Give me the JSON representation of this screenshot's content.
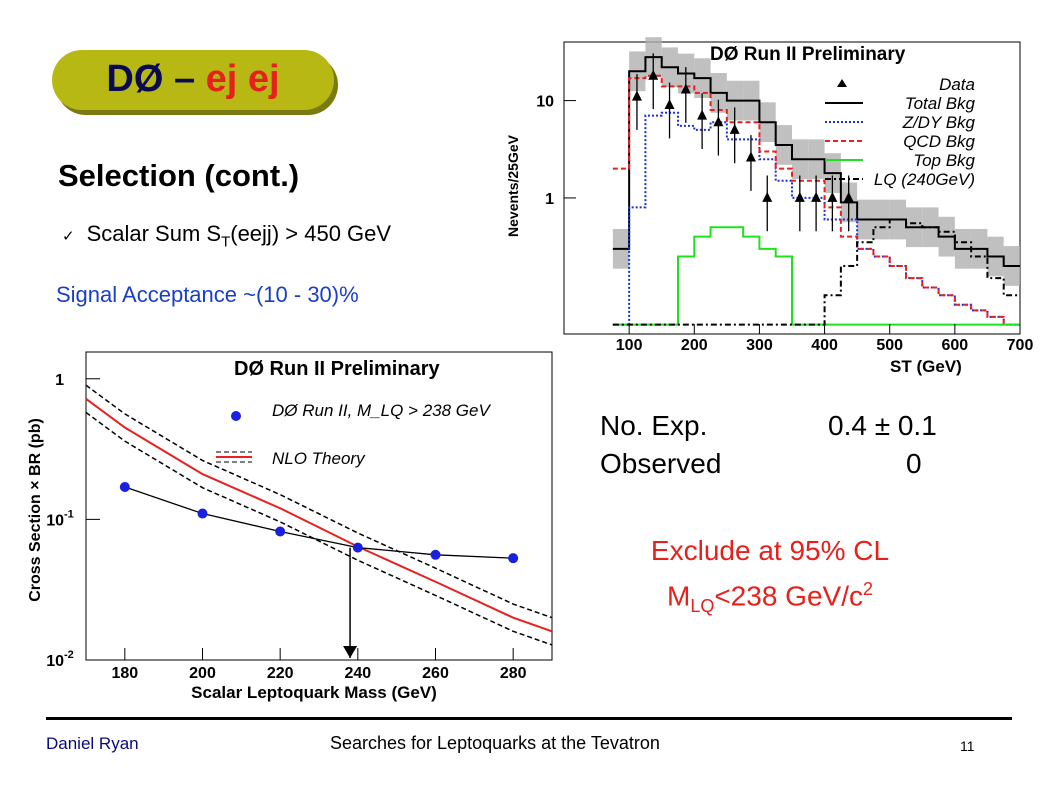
{
  "title": {
    "part1": "DØ – ",
    "part2": "ej ej"
  },
  "heading": "Selection (cont.)",
  "bullet": {
    "check": "✓",
    "pre": "Scalar Sum S",
    "sub": "T",
    "post": "(eejj) > 450 GeV"
  },
  "acceptance": "Signal Acceptance ~(10 - 30)%",
  "results": {
    "row1_label": "No. Exp.",
    "row1_value": "0.4 ± 0.1",
    "row2_label": "Observed",
    "row2_value": "0"
  },
  "exclusion": {
    "line1": "Exclude at 95% CL",
    "line2_pre": "M",
    "line2_sub": "LQ",
    "line2_mid": "<238 GeV/c",
    "line2_sup": "2"
  },
  "footer": {
    "author": "Daniel Ryan",
    "title": "Searches for Leptoquarks at the Tevatron",
    "page": "11"
  },
  "colors": {
    "title_pill": "#b8b814",
    "accent_red": "#e8201c",
    "accent_blue": "#1a3ec8"
  },
  "chart_data": [
    {
      "type": "histogram",
      "title": "DØ Run II Preliminary",
      "xlabel": "S_T (GeV)",
      "ylabel": "Nevents/25GeV",
      "yscale": "log",
      "xlim": [
        0,
        700
      ],
      "x_ticks": [
        "100",
        "200",
        "300",
        "400",
        "500",
        "600",
        "700"
      ],
      "y_ticks": [
        "1",
        "10"
      ],
      "bin_edges": [
        75,
        100,
        125,
        150,
        175,
        200,
        225,
        250,
        275,
        300,
        325,
        350,
        375,
        400,
        425,
        450,
        475,
        500,
        525,
        550,
        575,
        600,
        625,
        650,
        675,
        700
      ],
      "legend": [
        "Data",
        "Total Bkg",
        "Z/DY Bkg",
        "QCD Bkg",
        "Top Bkg",
        "LQ (240GeV)"
      ],
      "series": [
        {
          "name": "Total Bkg",
          "values": [
            0.3,
            20,
            28,
            22,
            19,
            17,
            12,
            10,
            10,
            6,
            3.5,
            2.5,
            2.5,
            1.8,
            0.9,
            0.6,
            0.6,
            0.6,
            0.5,
            0.5,
            0.4,
            0.3,
            0.3,
            0.25,
            0.2
          ]
        },
        {
          "name": "Z/DY Bkg",
          "values": [
            0.05,
            0.8,
            7,
            7.5,
            5.5,
            5,
            6,
            4,
            4,
            2.5,
            1.5,
            1,
            1,
            0.6,
            0.6,
            0.3,
            0.25,
            0.2,
            0.15,
            0.12,
            0.1,
            0.08,
            0.07,
            0.06,
            0.05
          ]
        },
        {
          "name": "QCD Bkg",
          "values": [
            2,
            17,
            18,
            14,
            14,
            12,
            8,
            6,
            6,
            3,
            2,
            1.5,
            1.5,
            0.8,
            0.4,
            0.3,
            0.25,
            0.2,
            0.15,
            0.12,
            0.1,
            0.08,
            0.07,
            0.06,
            0.05
          ]
        },
        {
          "name": "Top Bkg",
          "values": [
            0.05,
            0.05,
            0.05,
            0.05,
            0.25,
            0.4,
            0.5,
            0.5,
            0.4,
            0.3,
            0.25,
            0.05,
            0.05,
            0.05,
            0.05,
            0.05,
            0.05,
            0.05,
            0.05,
            0.05,
            0.05,
            0.05,
            0.05,
            0.05,
            0.05
          ]
        },
        {
          "name": "LQ (240GeV)",
          "values": [
            0.05,
            0.05,
            0.05,
            0.05,
            0.05,
            0.05,
            0.05,
            0.05,
            0.05,
            0.05,
            0.05,
            0.05,
            0.05,
            0.1,
            0.2,
            0.35,
            0.5,
            0.6,
            0.55,
            0.5,
            0.45,
            0.35,
            0.25,
            0.15,
            0.1
          ]
        }
      ],
      "data_points": [
        {
          "x": 112,
          "y": 11
        },
        {
          "x": 137,
          "y": 18
        },
        {
          "x": 162,
          "y": 9
        },
        {
          "x": 187,
          "y": 13
        },
        {
          "x": 212,
          "y": 7
        },
        {
          "x": 237,
          "y": 6
        },
        {
          "x": 262,
          "y": 5
        },
        {
          "x": 287,
          "y": 2.6
        },
        {
          "x": 312,
          "y": 1
        },
        {
          "x": 362,
          "y": 1
        },
        {
          "x": 387,
          "y": 1
        },
        {
          "x": 412,
          "y": 1
        },
        {
          "x": 437,
          "y": 1
        }
      ]
    },
    {
      "type": "line",
      "title": "DØ Run II Preliminary",
      "xlabel": "Scalar Leptoquark Mass (GeV)",
      "ylabel": "Cross Section × BR (pb)",
      "yscale": "log",
      "xlim": [
        170,
        290
      ],
      "ylim": [
        0.01,
        1.5
      ],
      "x_ticks": [
        "180",
        "200",
        "220",
        "240",
        "260",
        "280"
      ],
      "y_ticks": [
        "10^-2",
        "10^-1",
        "1"
      ],
      "legend": [
        "DØ Run II, M_LQ > 238 GeV",
        "NLO Theory"
      ],
      "series": [
        {
          "name": "DØ Run II, M_LQ > 238 GeV",
          "x": [
            180,
            200,
            220,
            240,
            260,
            280
          ],
          "y": [
            0.17,
            0.11,
            0.082,
            0.063,
            0.056,
            0.053
          ]
        },
        {
          "name": "NLO Theory",
          "x": [
            170,
            180,
            200,
            220,
            240,
            260,
            280,
            290
          ],
          "y": [
            0.72,
            0.45,
            0.21,
            0.12,
            0.064,
            0.036,
            0.02,
            0.016
          ]
        }
      ],
      "limit_marker": {
        "x": 238
      }
    }
  ]
}
